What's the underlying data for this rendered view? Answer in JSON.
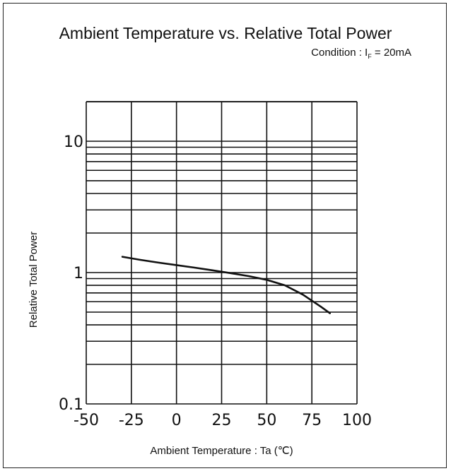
{
  "chart_data": {
    "type": "line",
    "title": "Ambient Temperature vs. Relative Total Power",
    "subtitle": {
      "prefix": "Condition : I",
      "subscript": "F",
      "suffix": " = 20mA"
    },
    "xlabel": "Ambient Temperature : Ta (℃)",
    "ylabel": "Relative Total Power",
    "xlim": [
      -50,
      100
    ],
    "ylim": [
      0.1,
      20
    ],
    "yscale": "log",
    "grid": true,
    "xticks": [
      {
        "value": -50,
        "label": "-50"
      },
      {
        "value": -25,
        "label": "-25"
      },
      {
        "value": 0,
        "label": "0"
      },
      {
        "value": 25,
        "label": "25"
      },
      {
        "value": 50,
        "label": "50"
      },
      {
        "value": 75,
        "label": "75"
      },
      {
        "value": 100,
        "label": "100"
      }
    ],
    "yticks": [
      {
        "value": 0.1,
        "label": "0.1"
      },
      {
        "value": 1,
        "label": "1"
      },
      {
        "value": 10,
        "label": "10"
      }
    ],
    "series": [
      {
        "x": [
          -30,
          -20,
          -10,
          0,
          10,
          20,
          30,
          40,
          50,
          60,
          70,
          80,
          85
        ],
        "y": [
          1.32,
          1.25,
          1.19,
          1.14,
          1.09,
          1.04,
          0.99,
          0.94,
          0.88,
          0.8,
          0.68,
          0.55,
          0.49
        ],
        "color": "#111111"
      }
    ]
  }
}
